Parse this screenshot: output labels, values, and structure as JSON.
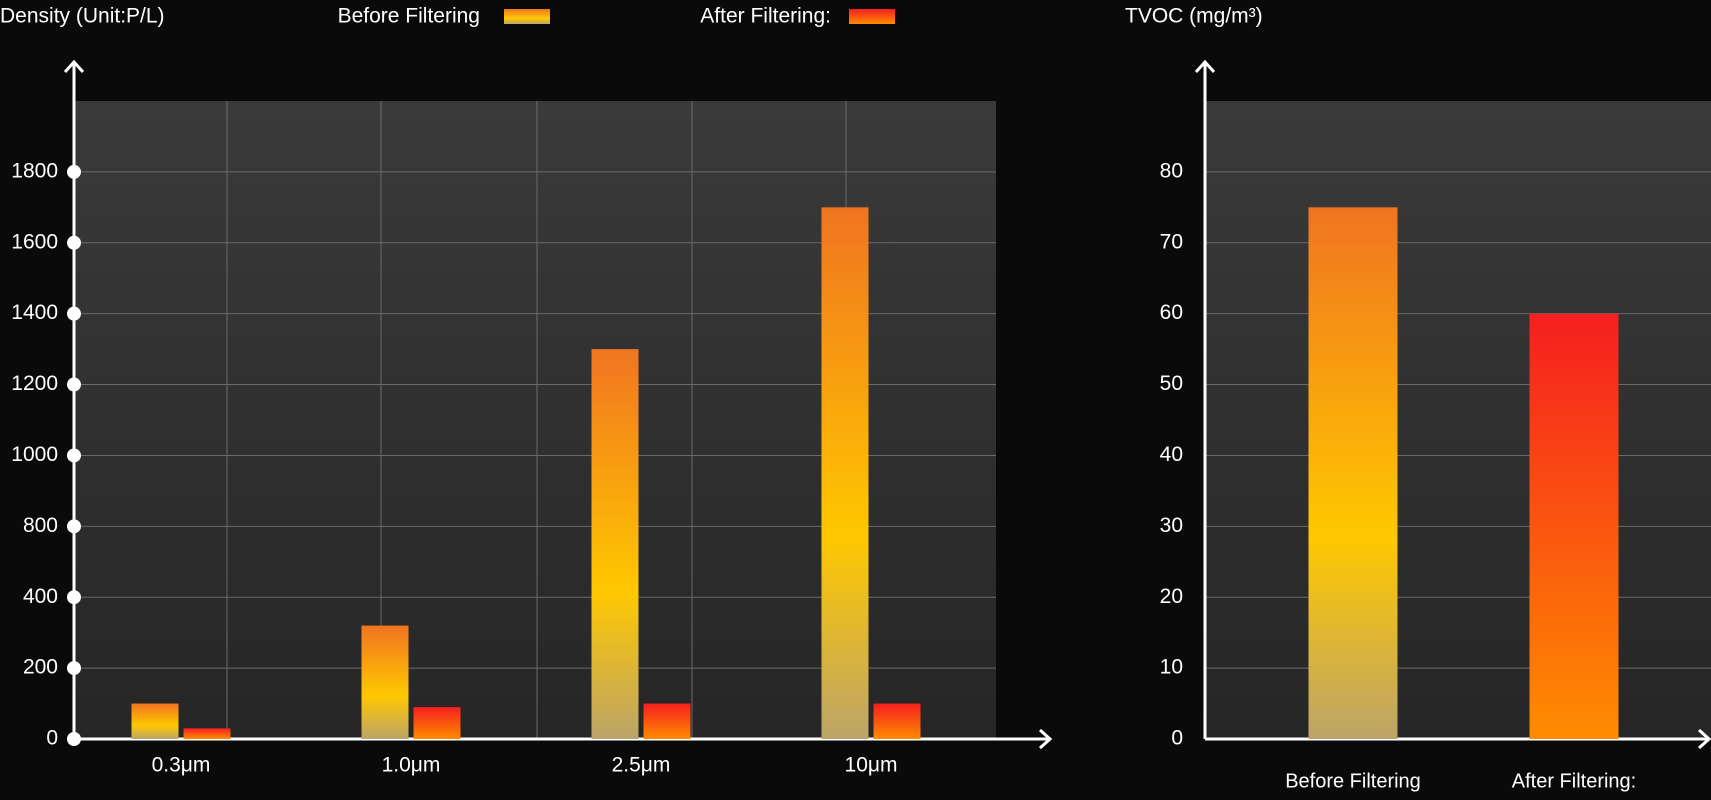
{
  "chart_data": [
    {
      "type": "bar",
      "title": "Density (Unit:P/L)",
      "categories": [
        "0.3μm",
        "1.0μm",
        "2.5μm",
        "10μm"
      ],
      "series": [
        {
          "name": "Before Filtering",
          "color": "#f07420",
          "values": [
            100,
            320,
            1300,
            1700
          ]
        },
        {
          "name": "After Filtering:",
          "color": "#f51f1f",
          "values": [
            30,
            90,
            100,
            100
          ]
        }
      ],
      "ylim": [
        0,
        2000
      ],
      "yticks": [
        0,
        200,
        400,
        800,
        1000,
        1200,
        1400,
        1600,
        1800
      ],
      "grid": true
    },
    {
      "type": "bar",
      "title": "TVOC (mg/m³)",
      "categories": [
        "Before Filtering",
        "After Filtering:"
      ],
      "values": [
        75,
        60
      ],
      "colors": [
        "#f07420",
        "#f51f1f"
      ],
      "ylim": [
        0,
        90
      ],
      "yticks": [
        0,
        10,
        20,
        30,
        40,
        50,
        60,
        70,
        80
      ],
      "grid": true
    }
  ]
}
